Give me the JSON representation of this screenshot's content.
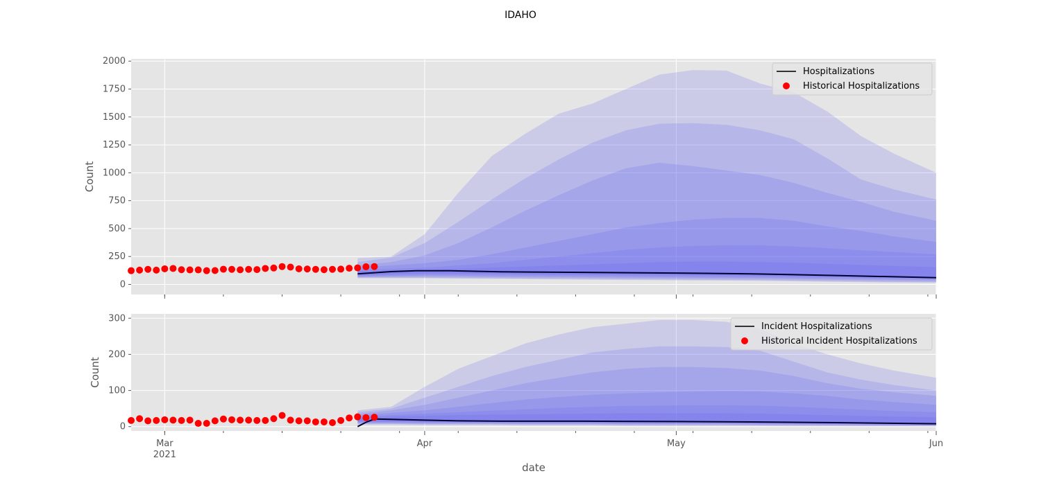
{
  "figure": {
    "title": "IDAHO",
    "xlabel": "date",
    "x_ticks": [
      {
        "date": "2021-03-01",
        "label": "Mar",
        "sublabel": "2021"
      },
      {
        "date": "2021-04-01",
        "label": "Apr",
        "sublabel": ""
      },
      {
        "date": "2021-05-01",
        "label": "May",
        "sublabel": ""
      },
      {
        "date": "2021-06-01",
        "label": "Jun",
        "sublabel": ""
      }
    ]
  },
  "chart_data": [
    {
      "type": "line",
      "ylabel": "Count",
      "xlim": [
        "2021-02-25",
        "2021-06-01"
      ],
      "ylim": [
        -90,
        2020
      ],
      "yticks": [
        0,
        250,
        500,
        750,
        1000,
        1250,
        1500,
        1750,
        2000
      ],
      "grid": true,
      "legend_position": "top-right",
      "historical": {
        "name": "Historical Hospitalizations",
        "color": "#ff0000",
        "dates": [
          "2021-02-25",
          "2021-02-26",
          "2021-02-27",
          "2021-02-28",
          "2021-03-01",
          "2021-03-02",
          "2021-03-03",
          "2021-03-04",
          "2021-03-05",
          "2021-03-06",
          "2021-03-07",
          "2021-03-08",
          "2021-03-09",
          "2021-03-10",
          "2021-03-11",
          "2021-03-12",
          "2021-03-13",
          "2021-03-14",
          "2021-03-15",
          "2021-03-16",
          "2021-03-17",
          "2021-03-18",
          "2021-03-19",
          "2021-03-20",
          "2021-03-21",
          "2021-03-22",
          "2021-03-23",
          "2021-03-24",
          "2021-03-25",
          "2021-03-26"
        ],
        "values": [
          123,
          128,
          135,
          128,
          140,
          143,
          132,
          130,
          130,
          123,
          124,
          136,
          135,
          131,
          135,
          133,
          143,
          147,
          160,
          155,
          140,
          138,
          135,
          132,
          135,
          137,
          145,
          148,
          158,
          160
        ]
      },
      "projection": {
        "name": "Hospitalizations",
        "color": "#000033",
        "dates": [
          "2021-03-24",
          "2021-03-26",
          "2021-03-28",
          "2021-03-31",
          "2021-04-04",
          "2021-04-10",
          "2021-04-20",
          "2021-05-01",
          "2021-05-10",
          "2021-05-20",
          "2021-06-01"
        ],
        "median": [
          95,
          105,
          115,
          122,
          122,
          113,
          108,
          102,
          95,
          80,
          60
        ]
      },
      "bands": {
        "color": "#6666ee",
        "dates": [
          "2021-03-24",
          "2021-03-28",
          "2021-04-01",
          "2021-04-05",
          "2021-04-09",
          "2021-04-13",
          "2021-04-17",
          "2021-04-21",
          "2021-04-25",
          "2021-04-29",
          "2021-05-03",
          "2021-05-07",
          "2021-05-11",
          "2021-05-15",
          "2021-05-19",
          "2021-05-23",
          "2021-05-27",
          "2021-06-01"
        ],
        "upper": [
          [
            235,
            250,
            450,
            820,
            1150,
            1350,
            1530,
            1620,
            1750,
            1880,
            1920,
            1915,
            1800,
            1720,
            1550,
            1330,
            1170,
            1000
          ],
          [
            200,
            240,
            370,
            560,
            760,
            950,
            1120,
            1270,
            1380,
            1440,
            1445,
            1430,
            1380,
            1300,
            1130,
            940,
            850,
            760
          ],
          [
            170,
            200,
            260,
            370,
            510,
            660,
            800,
            930,
            1040,
            1090,
            1060,
            1020,
            980,
            910,
            820,
            740,
            650,
            570
          ],
          [
            150,
            170,
            190,
            220,
            270,
            330,
            390,
            450,
            510,
            550,
            580,
            595,
            595,
            570,
            520,
            480,
            430,
            380
          ],
          [
            130,
            140,
            150,
            170,
            190,
            220,
            250,
            280,
            310,
            330,
            345,
            350,
            350,
            340,
            325,
            305,
            290,
            270
          ],
          [
            115,
            125,
            130,
            140,
            150,
            160,
            170,
            180,
            190,
            200,
            205,
            205,
            200,
            195,
            185,
            175,
            165,
            155
          ]
        ],
        "lower": [
          [
            55,
            55,
            55,
            52,
            50,
            48,
            45,
            42,
            40,
            38,
            36,
            34,
            32,
            28,
            24,
            20,
            17,
            15
          ],
          [
            60,
            60,
            60,
            58,
            55,
            52,
            50,
            48,
            46,
            44,
            42,
            40,
            38,
            34,
            30,
            26,
            22,
            20
          ],
          [
            65,
            68,
            70,
            68,
            66,
            64,
            62,
            60,
            58,
            56,
            54,
            52,
            50,
            46,
            42,
            38,
            34,
            30
          ],
          [
            70,
            75,
            80,
            78,
            76,
            74,
            72,
            70,
            68,
            66,
            64,
            62,
            60,
            56,
            52,
            48,
            44,
            40
          ],
          [
            78,
            85,
            92,
            90,
            88,
            86,
            84,
            82,
            80,
            78,
            76,
            74,
            72,
            68,
            64,
            60,
            56,
            52
          ],
          [
            85,
            95,
            102,
            100,
            98,
            96,
            94,
            92,
            90,
            88,
            86,
            84,
            80,
            76,
            72,
            68,
            64,
            60
          ]
        ]
      }
    },
    {
      "type": "line",
      "ylabel": "Count",
      "xlim": [
        "2021-02-25",
        "2021-06-01"
      ],
      "ylim": [
        -12,
        312
      ],
      "yticks": [
        0,
        100,
        200,
        300
      ],
      "grid": true,
      "legend_position": "top-right",
      "historical": {
        "name": "Historical Incident Hospitalizations",
        "color": "#ff0000",
        "dates": [
          "2021-02-25",
          "2021-02-26",
          "2021-02-27",
          "2021-02-28",
          "2021-03-01",
          "2021-03-02",
          "2021-03-03",
          "2021-03-04",
          "2021-03-05",
          "2021-03-06",
          "2021-03-07",
          "2021-03-08",
          "2021-03-09",
          "2021-03-10",
          "2021-03-11",
          "2021-03-12",
          "2021-03-13",
          "2021-03-14",
          "2021-03-15",
          "2021-03-16",
          "2021-03-17",
          "2021-03-18",
          "2021-03-19",
          "2021-03-20",
          "2021-03-21",
          "2021-03-22",
          "2021-03-23",
          "2021-03-24",
          "2021-03-25",
          "2021-03-26"
        ],
        "values": [
          17,
          22,
          16,
          17,
          19,
          18,
          17,
          18,
          9,
          9,
          16,
          21,
          19,
          18,
          18,
          17,
          17,
          22,
          31,
          18,
          16,
          16,
          13,
          13,
          11,
          17,
          24,
          27,
          25,
          26
        ]
      },
      "projection": {
        "name": "Incident Hospitalizations",
        "color": "#000033",
        "dates": [
          "2021-03-24",
          "2021-03-25",
          "2021-03-26",
          "2021-03-28",
          "2021-04-01",
          "2021-04-05",
          "2021-04-10",
          "2021-04-20",
          "2021-05-01",
          "2021-05-10",
          "2021-05-20",
          "2021-06-01"
        ],
        "median": [
          0,
          12,
          21,
          20,
          18,
          16,
          15,
          15,
          14,
          13,
          11,
          8
        ]
      },
      "bands": {
        "color": "#6666ee",
        "dates": [
          "2021-03-24",
          "2021-03-28",
          "2021-04-01",
          "2021-04-05",
          "2021-04-09",
          "2021-04-13",
          "2021-04-17",
          "2021-04-21",
          "2021-04-25",
          "2021-04-29",
          "2021-05-03",
          "2021-05-07",
          "2021-05-11",
          "2021-05-15",
          "2021-05-19",
          "2021-05-23",
          "2021-05-27",
          "2021-06-01"
        ],
        "upper": [
          [
            45,
            55,
            110,
            160,
            195,
            230,
            255,
            275,
            285,
            295,
            295,
            290,
            270,
            230,
            200,
            175,
            155,
            135
          ],
          [
            40,
            50,
            80,
            110,
            140,
            165,
            185,
            205,
            215,
            222,
            222,
            220,
            210,
            180,
            150,
            130,
            115,
            100
          ],
          [
            35,
            45,
            60,
            80,
            100,
            120,
            135,
            150,
            160,
            165,
            165,
            162,
            155,
            140,
            120,
            105,
            95,
            85
          ],
          [
            30,
            38,
            45,
            55,
            65,
            75,
            82,
            88,
            92,
            95,
            97,
            98,
            97,
            92,
            85,
            75,
            68,
            60
          ],
          [
            26,
            32,
            36,
            40,
            44,
            48,
            52,
            55,
            57,
            58,
            59,
            59,
            58,
            55,
            51,
            47,
            43,
            40
          ],
          [
            23,
            28,
            30,
            32,
            33,
            34,
            35,
            36,
            37,
            37,
            37,
            37,
            36,
            34,
            32,
            30,
            28,
            26
          ]
        ],
        "lower": [
          [
            5,
            5,
            4,
            4,
            4,
            3,
            3,
            3,
            2,
            2,
            2,
            2,
            2,
            1,
            1,
            1,
            1,
            1
          ],
          [
            7,
            7,
            6,
            6,
            6,
            5,
            5,
            5,
            4,
            4,
            4,
            4,
            3,
            3,
            3,
            2,
            2,
            2
          ],
          [
            9,
            9,
            8,
            8,
            8,
            7,
            7,
            7,
            6,
            6,
            6,
            6,
            5,
            5,
            4,
            4,
            3,
            3
          ],
          [
            11,
            11,
            10,
            10,
            10,
            9,
            9,
            9,
            8,
            8,
            8,
            8,
            7,
            7,
            6,
            6,
            5,
            5
          ],
          [
            13,
            13,
            12,
            12,
            12,
            11,
            11,
            11,
            10,
            10,
            10,
            10,
            9,
            9,
            8,
            7,
            7,
            6
          ],
          [
            15,
            15,
            14,
            14,
            14,
            13,
            13,
            13,
            12,
            12,
            12,
            12,
            11,
            11,
            10,
            9,
            8,
            8
          ]
        ]
      }
    }
  ]
}
